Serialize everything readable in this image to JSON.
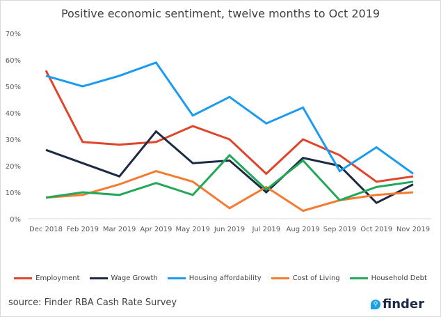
{
  "chart_data": {
    "type": "line",
    "title": "Positive economic sentiment, twelve months to Oct 2019",
    "xlabel": "",
    "ylabel": "",
    "ylim": [
      0,
      70
    ],
    "yticks": [
      "0%",
      "10%",
      "20%",
      "30%",
      "40%",
      "50%",
      "60%",
      "70%"
    ],
    "categories": [
      "Dec 2018",
      "Feb 2019",
      "Mar 2019",
      "Apr 2019",
      "May 2019",
      "Jun 2019",
      "Jul 2019",
      "Aug 2019",
      "Sep 2019",
      "Oct 2019",
      "Nov 2019"
    ],
    "grid": false,
    "legend_position": "bottom",
    "series": [
      {
        "name": "Employment",
        "color": "#e0452b",
        "values": [
          56,
          29,
          28,
          29,
          35,
          30,
          17,
          30,
          24,
          14,
          16
        ]
      },
      {
        "name": "Wage Growth",
        "color": "#1c2a44",
        "values": [
          26,
          21,
          16,
          33,
          21,
          22,
          10,
          23,
          20,
          6,
          13
        ]
      },
      {
        "name": "Housing affordability",
        "color": "#1a9bf0",
        "values": [
          54,
          50,
          54,
          59,
          39,
          46,
          36,
          42,
          18,
          27,
          17
        ]
      },
      {
        "name": "Cost of Living",
        "color": "#f47b30",
        "values": [
          8,
          9,
          13,
          18,
          14,
          4,
          12,
          3,
          7,
          9,
          10
        ]
      },
      {
        "name": "Household Debt",
        "color": "#23a85a",
        "values": [
          8,
          10,
          9,
          13.5,
          9,
          24,
          11,
          22,
          7,
          12,
          14
        ]
      }
    ]
  },
  "footer": {
    "source": "source: Finder RBA Cash Rate Survey",
    "logo_text": "finder"
  }
}
